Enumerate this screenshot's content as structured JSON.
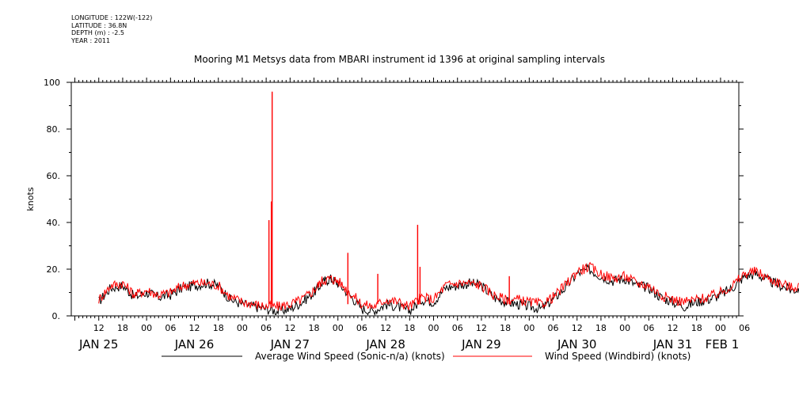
{
  "header": {
    "longitude": "LONGITUDE : 122W(-122)",
    "latitude": "LATITUDE : 36.8N",
    "depth": "DEPTH (m) : -2.5",
    "year": "YEAR : 2011"
  },
  "chart_data": {
    "type": "line",
    "title": "Mooring M1 Metsys data from MBARI instrument id 1396 at original sampling intervals",
    "ylabel": "knots",
    "ylim": [
      0,
      100
    ],
    "y_ticks": [
      "0.",
      "20.",
      "40.",
      "60.",
      "80.",
      "100"
    ],
    "x_hour_ticks": [
      "12",
      "18",
      "00",
      "06",
      "12",
      "18",
      "00",
      "06",
      "12",
      "18",
      "00",
      "06",
      "12",
      "18",
      "00",
      "06",
      "12",
      "18",
      "00",
      "06",
      "12",
      "18",
      "00",
      "06",
      "12",
      "18",
      "00",
      "06"
    ],
    "x_day_labels": [
      "JAN 25",
      "JAN 26",
      "JAN 27",
      "JAN 28",
      "JAN 29",
      "JAN 30",
      "JAN 31",
      "FEB 1"
    ],
    "series": [
      {
        "name": "Average Wind Speed (Sonic-n/a) (knots)",
        "color": "#000000",
        "x_hours": [
          0,
          3,
          6,
          9,
          12,
          15,
          18,
          21,
          24,
          27,
          30,
          33,
          36,
          39,
          42,
          45,
          48,
          51,
          54,
          56,
          58,
          60,
          63,
          66,
          69,
          72,
          75,
          78,
          81,
          84,
          87,
          90,
          93,
          96,
          99,
          102,
          105,
          108,
          111,
          114,
          117,
          120,
          123,
          126,
          129,
          132,
          135,
          138,
          141,
          144,
          147,
          150,
          153,
          156,
          159,
          162,
          165,
          168,
          171,
          174,
          177
        ],
        "values": [
          6,
          12,
          13,
          8,
          10,
          8,
          9,
          12,
          13,
          14,
          13,
          7,
          5,
          4,
          3,
          2,
          3,
          6,
          10,
          14,
          16,
          14,
          9,
          3,
          2,
          5,
          4,
          2,
          7,
          6,
          12,
          13,
          14,
          13,
          8,
          6,
          5,
          4,
          3,
          7,
          12,
          18,
          20,
          17,
          15,
          16,
          13,
          12,
          8,
          6,
          4,
          6,
          7,
          9,
          12,
          17,
          18,
          15,
          13,
          11,
          12
        ]
      },
      {
        "name": "Wind Speed (Windbird) (knots)",
        "color": "#ff0000",
        "x_hours": [
          0,
          3,
          6,
          9,
          12,
          15,
          18,
          21,
          24,
          27,
          30,
          33,
          36,
          39,
          42,
          45,
          48,
          51,
          54,
          56,
          58,
          60,
          63,
          66,
          69,
          72,
          75,
          78,
          81,
          84,
          87,
          90,
          93,
          96,
          99,
          102,
          105,
          108,
          111,
          114,
          117,
          120,
          123,
          126,
          129,
          132,
          135,
          138,
          141,
          144,
          147,
          150,
          153,
          156,
          159,
          162,
          165,
          168,
          171,
          174,
          177
        ],
        "values": [
          7,
          13,
          14,
          9,
          11,
          9,
          10,
          13,
          14,
          14,
          13,
          8,
          6,
          5,
          4,
          4,
          5,
          7,
          11,
          15,
          16,
          15,
          10,
          5,
          4,
          7,
          6,
          4,
          8,
          7,
          13,
          14,
          14,
          13,
          9,
          7,
          7,
          6,
          5,
          8,
          13,
          19,
          21,
          18,
          16,
          17,
          14,
          13,
          9,
          7,
          6,
          7,
          8,
          10,
          13,
          18,
          19,
          16,
          14,
          12,
          14
        ]
      }
    ],
    "spikes": [
      {
        "x_hours": 42.7,
        "value": 41
      },
      {
        "x_hours": 43.5,
        "value": 96
      },
      {
        "x_hours": 43.3,
        "value": 49
      },
      {
        "x_hours": 62.5,
        "value": 27
      },
      {
        "x_hours": 70.0,
        "value": 18
      },
      {
        "x_hours": 80.0,
        "value": 39
      },
      {
        "x_hours": 80.6,
        "value": 21
      },
      {
        "x_hours": 103.0,
        "value": 17
      }
    ]
  }
}
